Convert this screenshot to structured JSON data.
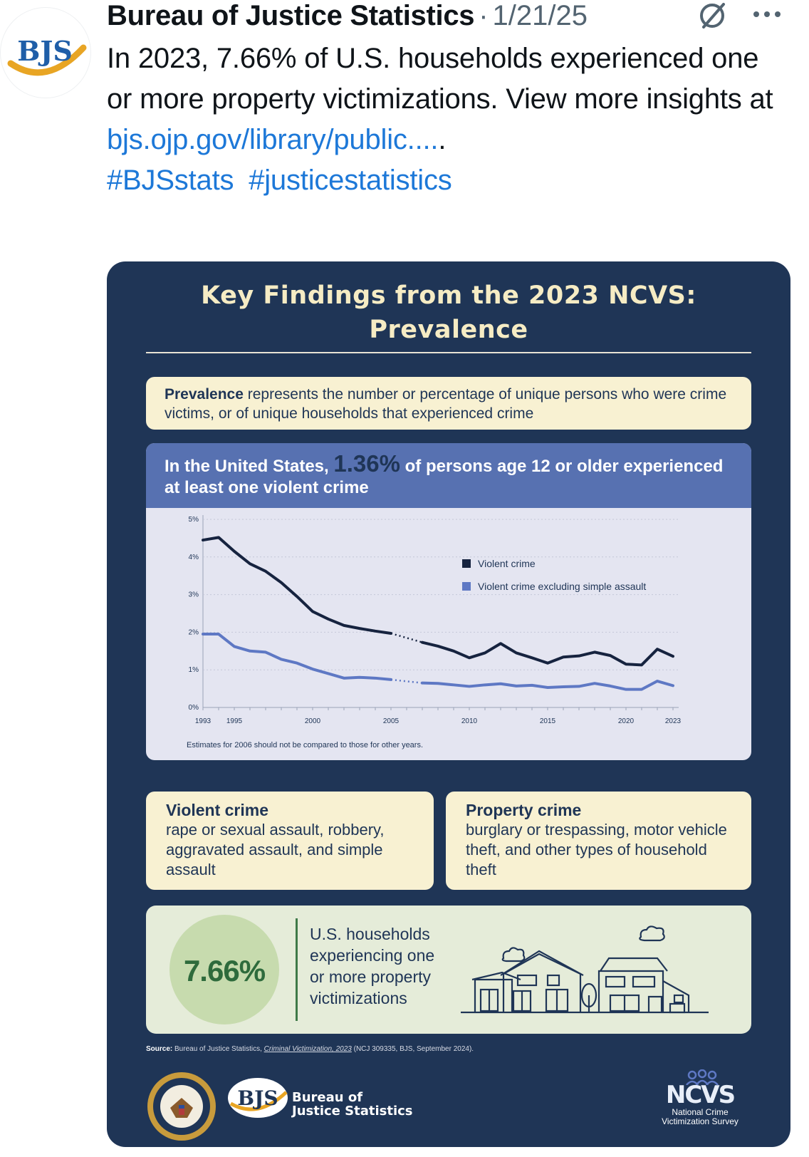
{
  "tweet": {
    "author": "Bureau of Justice Statistics",
    "separator": "·",
    "date": "1/21/25",
    "avatar_text": "BJS",
    "icons": {
      "grok": "grok-slash-icon",
      "more": "more-dots-icon"
    },
    "text_1": "In 2023, 7.66% of U.S. households experienced one or more property victimizations. View more insights at",
    "link": "bjs.ojp.gov/library/public....",
    "link_trailing": ".",
    "hashtags": [
      "#BJSstats",
      "#justicestatistics"
    ]
  },
  "infographic": {
    "title_line1": "Key Findings from the 2023 NCVS:",
    "title_line2": "Prevalence",
    "definition_bold": "Prevalence",
    "definition_rest": " represents the number or percentage of unique persons who were crime victims, or of unique households that experienced crime",
    "violent_pre": "In the United States,",
    "violent_pct": "1.36%",
    "violent_post": "of persons age 12 or older experienced at least one violent crime",
    "chart_note": "Estimates for 2006 should not be compared to those for other years.",
    "violent_def_title": "Violent crime",
    "violent_def_body": "rape or sexual assault, robbery, aggravated assault, and simple assault",
    "property_def_title": "Property crime",
    "property_def_body": "burglary or trespassing, motor vehicle theft, and other types of household theft",
    "household_pct": "7.66%",
    "household_text": "U.S. households experiencing one or more property victimizations",
    "source_label": "Source:",
    "source_pre": "Bureau of Justice Statistics,",
    "source_title": "Criminal Victimization, 2023",
    "source_post": "(NCJ 309335, BJS, September 2024).",
    "bjs_logo_text": "BJS",
    "bjs_name_line1": "Bureau of",
    "bjs_name_line2": "Justice Statistics",
    "ncvs_abbr": "NCVS",
    "ncvs_line1": "National Crime",
    "ncvs_line2": "Victimization Survey",
    "colors": {
      "navy": "#1f3556",
      "violent": "#16233f",
      "excluding": "#5e78c4",
      "cream": "#f8f1d2",
      "green": "#2e6b3c"
    }
  },
  "chart_data": {
    "type": "line",
    "x": [
      1993,
      1994,
      1995,
      1996,
      1997,
      1998,
      1999,
      2000,
      2001,
      2002,
      2003,
      2004,
      2005,
      2006,
      2007,
      2008,
      2009,
      2010,
      2011,
      2012,
      2013,
      2014,
      2015,
      2016,
      2017,
      2018,
      2019,
      2020,
      2021,
      2022,
      2023
    ],
    "xticks": [
      "1993",
      "1995",
      "2000",
      "2005",
      "2010",
      "2015",
      "2020",
      "2023"
    ],
    "yticks": [
      "0%",
      "1%",
      "2%",
      "3%",
      "4%",
      "5%"
    ],
    "ylim": [
      0,
      5
    ],
    "grid": true,
    "legend_position": "right",
    "gap_note": "2006 shown as dotted segment",
    "series": [
      {
        "name": "Violent crime",
        "color": "#16233f",
        "values": [
          4.45,
          4.52,
          4.15,
          3.82,
          3.62,
          3.32,
          2.95,
          2.55,
          2.35,
          2.18,
          2.1,
          2.03,
          1.97,
          null,
          1.73,
          1.63,
          1.5,
          1.32,
          1.45,
          1.7,
          1.45,
          1.32,
          1.18,
          1.34,
          1.37,
          1.47,
          1.38,
          1.15,
          1.13,
          1.55,
          1.36
        ]
      },
      {
        "name": "Violent crime excluding simple assault",
        "color": "#5e78c4",
        "values": [
          1.95,
          1.95,
          1.62,
          1.5,
          1.47,
          1.28,
          1.18,
          1.02,
          0.9,
          0.78,
          0.8,
          0.78,
          0.74,
          null,
          0.65,
          0.64,
          0.6,
          0.56,
          0.6,
          0.63,
          0.57,
          0.59,
          0.53,
          0.55,
          0.56,
          0.64,
          0.57,
          0.48,
          0.48,
          0.7,
          0.58
        ]
      }
    ]
  }
}
